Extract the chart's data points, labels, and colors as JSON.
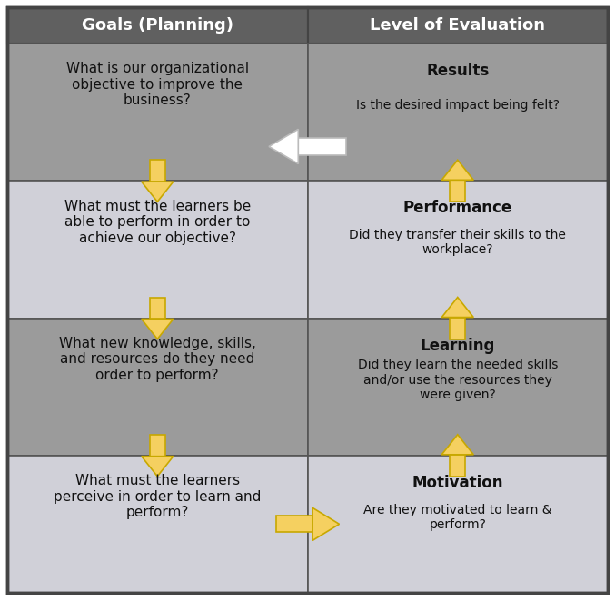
{
  "title_left": "Goals (Planning)",
  "title_right": "Level of Evaluation",
  "header_bg": "#606060",
  "header_text_color": "#ffffff",
  "row_colors_left": [
    "#9b9b9b",
    "#d0d0d8",
    "#9b9b9b",
    "#d0d0d8"
  ],
  "row_colors_right": [
    "#9b9b9b",
    "#d0d0d8",
    "#9b9b9b",
    "#d0d0d8"
  ],
  "left_cells": [
    "What is our organizational\nobjective to improve the\nbusiness?",
    "What must the learners be\nable to perform in order to\nachieve our objective?",
    "What new knowledge, skills,\nand resources do they need\norder to perform?",
    "What must the learners\nperceive in order to learn and\nperform?"
  ],
  "right_titles": [
    "Results",
    "Performance",
    "Learning",
    "Motivation"
  ],
  "right_bodies": [
    "Is the desired impact being felt?",
    "Did they transfer their skills to the\nworkplace?",
    "Did they learn the needed skills\nand/or use the resources they\nwere given?",
    "Are they motivated to learn &\nperform?"
  ],
  "yellow": "#F5D060",
  "yellow_edge": "#C8A800",
  "white_arrow": "#ffffff",
  "white_edge": "#cccccc",
  "border_color": "#555555",
  "figw": 6.77,
  "figh": 6.61,
  "dpi": 100
}
